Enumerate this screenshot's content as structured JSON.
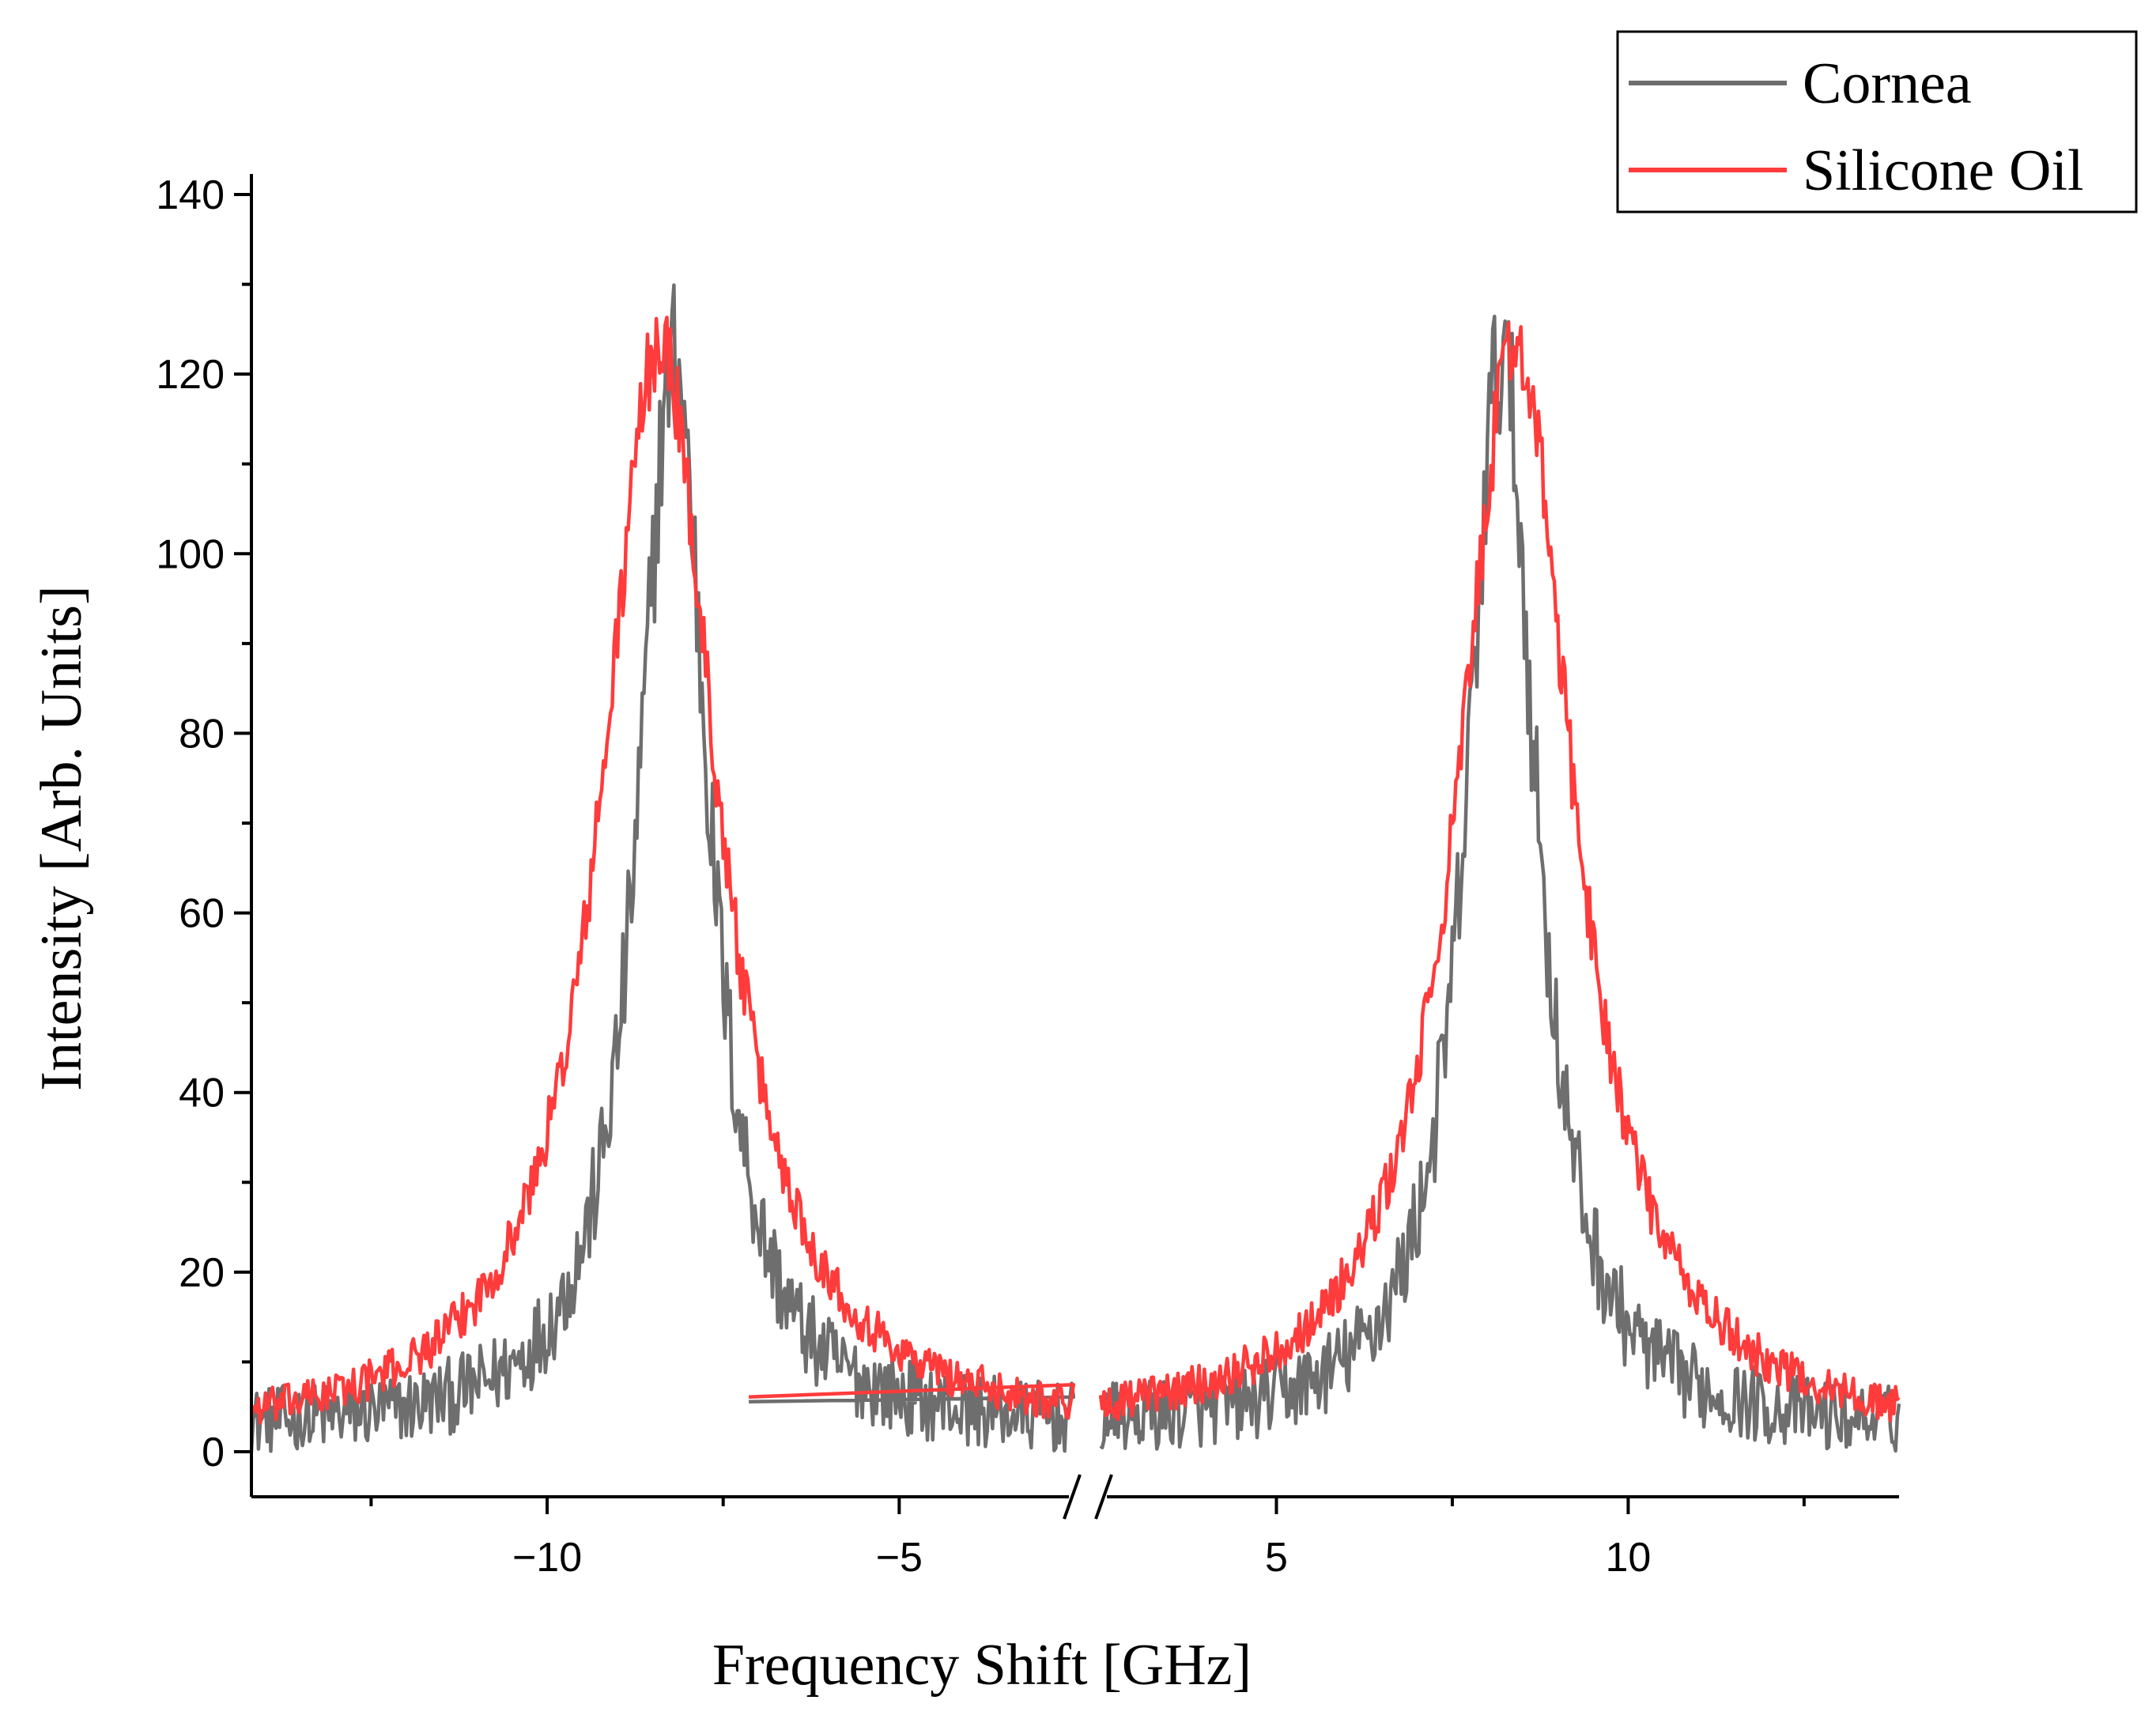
{
  "chart_data": {
    "type": "line",
    "title": "",
    "xlabel": "Frequency Shift [GHz]",
    "ylabel": "Intensity [Arb. Units]",
    "ylim": [
      0,
      140
    ],
    "x_left_range": [
      -14.2,
      -2.5
    ],
    "x_right_range": [
      2.5,
      13.85
    ],
    "axis_break": true,
    "x_ticks": [
      {
        "value": -10,
        "label": "−10"
      },
      {
        "value": -5,
        "label": "−5"
      },
      {
        "value": 5,
        "label": "5"
      },
      {
        "value": 10,
        "label": "10"
      }
    ],
    "x_minor_ticks": [
      -12.5,
      -7.5,
      7.5,
      12.5
    ],
    "y_ticks": [
      {
        "value": 0,
        "label": "0"
      },
      {
        "value": 20,
        "label": "20"
      },
      {
        "value": 40,
        "label": "40"
      },
      {
        "value": 60,
        "label": "60"
      },
      {
        "value": 80,
        "label": "80"
      },
      {
        "value": 100,
        "label": "100"
      },
      {
        "value": 120,
        "label": "120"
      },
      {
        "value": 140,
        "label": "140"
      }
    ],
    "legend_position": "top-right",
    "series": [
      {
        "name": "Cornea",
        "color": "#6e6e6e",
        "peaks": [
          {
            "center": -8.2,
            "height": 120,
            "width": 0.6
          },
          {
            "center": 8.2,
            "height": 120,
            "width": 0.6
          }
        ],
        "baseline": 2,
        "noise": 5
      },
      {
        "name": "Silicone Oil",
        "color": "#ff3b3b",
        "peaks": [
          {
            "center": -8.4,
            "height": 122,
            "width": 1.0
          },
          {
            "center": 8.4,
            "height": 122,
            "width": 1.0
          }
        ],
        "baseline": 1,
        "noise": 2.5
      }
    ]
  },
  "legend": {
    "items": [
      {
        "label": "Cornea",
        "color": "#6e6e6e"
      },
      {
        "label": "Silicone Oil",
        "color": "#ff3b3b"
      }
    ]
  }
}
